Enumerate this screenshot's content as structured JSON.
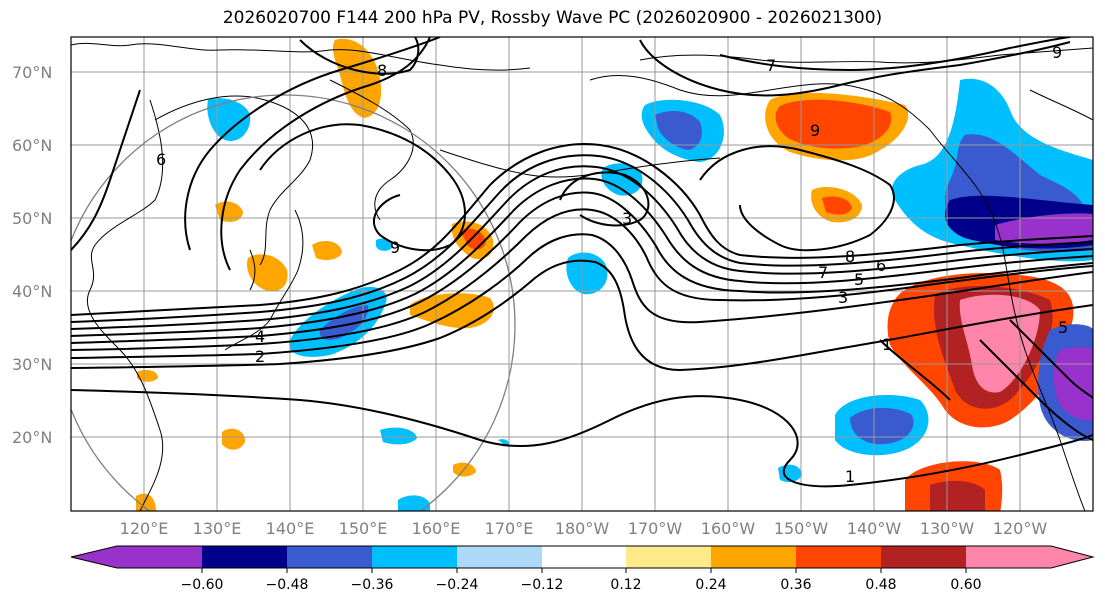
{
  "title": "2026020700 F144 200 hPa PV, Rossby Wave PC (2026020900 - 2026021300)",
  "colors": {
    "neg_060": "#9932CC",
    "neg_048": "#00008B",
    "neg_036": "#3A5BCF",
    "neg_024": "#00BFFF",
    "neg_012": "#ADD8F8",
    "zero": "#FFFFFF",
    "pos_012": "#FFEA8A",
    "pos_024": "#FFA500",
    "pos_036": "#FF4500",
    "pos_048": "#B22222",
    "pos_060": "#FF85AA",
    "grid": "#999999",
    "coast": "#000000",
    "contour": "#000000"
  },
  "latitude_labels": [
    "70°N",
    "60°N",
    "50°N",
    "40°N",
    "30°N",
    "20°N"
  ],
  "longitude_labels": [
    "120°E",
    "130°E",
    "140°E",
    "150°E",
    "160°E",
    "170°E",
    "180°W",
    "170°W",
    "160°W",
    "150°W",
    "140°W",
    "130°W",
    "120°W"
  ],
  "colorbar_labels": [
    "−0.60",
    "−0.48",
    "−0.36",
    "−0.24",
    "−0.12",
    "0.12",
    "0.24",
    "0.36",
    "0.48",
    "0.60"
  ],
  "contour_labels": [
    {
      "text": "8",
      "id": "c8a"
    },
    {
      "text": "7",
      "id": "c7a"
    },
    {
      "text": "9",
      "id": "c9a"
    },
    {
      "text": "6",
      "id": "c6a"
    },
    {
      "text": "5",
      "id": "c5a"
    },
    {
      "text": "9",
      "id": "c9b"
    },
    {
      "text": "3",
      "id": "c3a"
    },
    {
      "text": "8",
      "id": "c8b"
    },
    {
      "text": "7",
      "id": "c7b"
    },
    {
      "text": "6",
      "id": "c6b"
    },
    {
      "text": "5",
      "id": "c5b"
    },
    {
      "text": "3",
      "id": "c3b"
    },
    {
      "text": "1",
      "id": "c1a"
    },
    {
      "text": "1",
      "id": "c1b"
    },
    {
      "text": "4",
      "id": "c4a"
    },
    {
      "text": "2",
      "id": "c2a"
    },
    {
      "text": "9",
      "id": "c9c"
    }
  ]
}
